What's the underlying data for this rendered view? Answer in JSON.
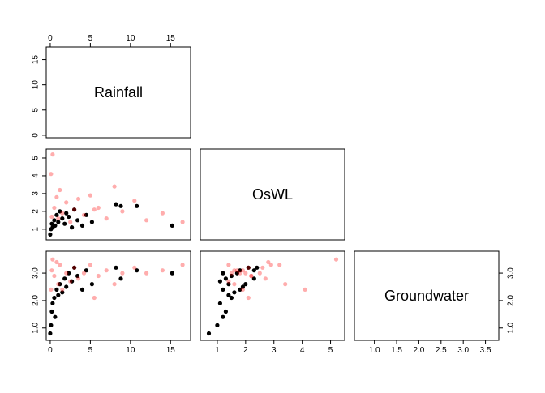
{
  "chart_data": {
    "type": "scatter",
    "kind": "pairs-plot-lower-triangle",
    "variables": [
      "Rainfall",
      "OsWL",
      "Groundwater"
    ],
    "axes": {
      "Rainfall": {
        "range": [
          -0.5,
          17.5
        ],
        "ticks": [
          0,
          5,
          10,
          15
        ],
        "tick_labels": [
          "0",
          "5",
          "10",
          "15"
        ]
      },
      "OsWL": {
        "range": [
          0.4,
          5.5
        ],
        "ticks": [
          1,
          2,
          3,
          4,
          5
        ],
        "tick_labels": [
          "1",
          "2",
          "3",
          "4",
          "5"
        ]
      },
      "Groundwater": {
        "range": [
          0.55,
          3.8
        ],
        "ticks": [
          1.0,
          1.5,
          2.0,
          2.5,
          3.0,
          3.5
        ],
        "tick_labels": [
          "1.0",
          "1.5",
          "2.0",
          "2.5",
          "3.0",
          "3.5"
        ]
      },
      "Groundwater_side_ticks": {
        "ticks": [
          1.0,
          2.0,
          3.0
        ],
        "tick_labels": [
          "1.0",
          "2.0",
          "3.0"
        ]
      }
    },
    "colors": {
      "observed": "#000000",
      "simulated": "#ff0000"
    },
    "series": [
      {
        "color": "#000000",
        "points": [
          {
            "Rainfall": 0.0,
            "OsWL": 0.7,
            "Groundwater": 0.8
          },
          {
            "Rainfall": 0.1,
            "OsWL": 1.0,
            "Groundwater": 1.1
          },
          {
            "Rainfall": 0.2,
            "OsWL": 1.3,
            "Groundwater": 1.6
          },
          {
            "Rainfall": 0.3,
            "OsWL": 1.1,
            "Groundwater": 1.9
          },
          {
            "Rainfall": 0.5,
            "OsWL": 1.5,
            "Groundwater": 2.1
          },
          {
            "Rainfall": 0.6,
            "OsWL": 1.2,
            "Groundwater": 1.4
          },
          {
            "Rainfall": 0.8,
            "OsWL": 1.8,
            "Groundwater": 2.4
          },
          {
            "Rainfall": 1.0,
            "OsWL": 1.4,
            "Groundwater": 2.2
          },
          {
            "Rainfall": 1.2,
            "OsWL": 2.0,
            "Groundwater": 2.6
          },
          {
            "Rainfall": 1.5,
            "OsWL": 1.6,
            "Groundwater": 2.3
          },
          {
            "Rainfall": 1.8,
            "OsWL": 1.3,
            "Groundwater": 2.8
          },
          {
            "Rainfall": 2.0,
            "OsWL": 1.9,
            "Groundwater": 2.5
          },
          {
            "Rainfall": 2.3,
            "OsWL": 1.7,
            "Groundwater": 3.0
          },
          {
            "Rainfall": 2.7,
            "OsWL": 1.1,
            "Groundwater": 2.7
          },
          {
            "Rainfall": 3.0,
            "OsWL": 2.1,
            "Groundwater": 3.2
          },
          {
            "Rainfall": 3.4,
            "OsWL": 1.5,
            "Groundwater": 2.9
          },
          {
            "Rainfall": 4.0,
            "OsWL": 1.2,
            "Groundwater": 2.4
          },
          {
            "Rainfall": 4.5,
            "OsWL": 1.8,
            "Groundwater": 3.1
          },
          {
            "Rainfall": 5.2,
            "OsWL": 1.4,
            "Groundwater": 2.6
          },
          {
            "Rainfall": 8.2,
            "OsWL": 2.4,
            "Groundwater": 3.2
          },
          {
            "Rainfall": 8.8,
            "OsWL": 2.3,
            "Groundwater": 2.8
          },
          {
            "Rainfall": 10.8,
            "OsWL": 2.3,
            "Groundwater": 3.1
          },
          {
            "Rainfall": 15.2,
            "OsWL": 1.2,
            "Groundwater": 3.0
          }
        ]
      },
      {
        "color": "#ff0000",
        "alpha": 0.2,
        "points": [
          {
            "Rainfall": 0.2,
            "OsWL": 1.7,
            "Groundwater": 3.1
          },
          {
            "Rainfall": 0.5,
            "OsWL": 2.2,
            "Groundwater": 2.9
          },
          {
            "Rainfall": 0.8,
            "OsWL": 2.8,
            "Groundwater": 3.4
          },
          {
            "Rainfall": 1.0,
            "OsWL": 1.6,
            "Groundwater": 2.6
          },
          {
            "Rainfall": 1.2,
            "OsWL": 3.2,
            "Groundwater": 3.3
          },
          {
            "Rainfall": 1.5,
            "OsWL": 1.9,
            "Groundwater": 2.4
          },
          {
            "Rainfall": 2.0,
            "OsWL": 2.5,
            "Groundwater": 3.0
          },
          {
            "Rainfall": 2.5,
            "OsWL": 1.4,
            "Groundwater": 2.7
          },
          {
            "Rainfall": 3.0,
            "OsWL": 2.1,
            "Groundwater": 3.2
          },
          {
            "Rainfall": 3.5,
            "OsWL": 2.7,
            "Groundwater": 2.8
          },
          {
            "Rainfall": 4.2,
            "OsWL": 1.8,
            "Groundwater": 3.0
          },
          {
            "Rainfall": 5.0,
            "OsWL": 2.9,
            "Groundwater": 3.3
          },
          {
            "Rainfall": 6.0,
            "OsWL": 2.2,
            "Groundwater": 2.9
          },
          {
            "Rainfall": 7.0,
            "OsWL": 1.6,
            "Groundwater": 3.1
          },
          {
            "Rainfall": 8.0,
            "OsWL": 3.4,
            "Groundwater": 2.6
          },
          {
            "Rainfall": 9.0,
            "OsWL": 2.0,
            "Groundwater": 3.0
          },
          {
            "Rainfall": 10.5,
            "OsWL": 2.6,
            "Groundwater": 3.2
          },
          {
            "Rainfall": 12.0,
            "OsWL": 1.5,
            "Groundwater": 3.0
          },
          {
            "Rainfall": 14.0,
            "OsWL": 1.9,
            "Groundwater": 3.1
          },
          {
            "Rainfall": 16.5,
            "OsWL": 1.4,
            "Groundwater": 3.3
          },
          {
            "Rainfall": 0.3,
            "OsWL": 5.2,
            "Groundwater": 3.5
          },
          {
            "Rainfall": 0.1,
            "OsWL": 4.1,
            "Groundwater": 2.4
          },
          {
            "Rainfall": 5.5,
            "OsWL": 2.1,
            "Groundwater": 2.1
          }
        ]
      }
    ]
  }
}
